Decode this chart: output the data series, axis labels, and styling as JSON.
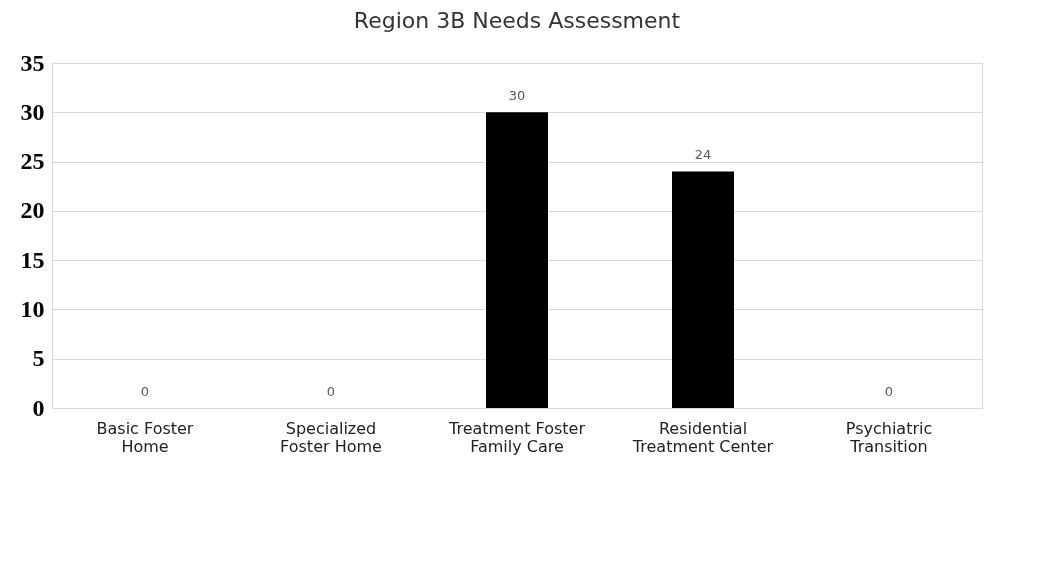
{
  "chart_data": {
    "type": "bar",
    "title": "Region 3B Needs Assessment",
    "categories": [
      "Basic Foster Home",
      "Specialized Foster Home",
      "Treatment Foster Family Care",
      "Residential Treatment Center",
      "Psychiatric Transition"
    ],
    "values": [
      0,
      0,
      30,
      24,
      0
    ],
    "color": "#000000",
    "ylim": [
      0,
      35
    ],
    "yticks": [
      0,
      5,
      10,
      15,
      20,
      25,
      30,
      35
    ],
    "grid": "y",
    "data_labels": true
  }
}
